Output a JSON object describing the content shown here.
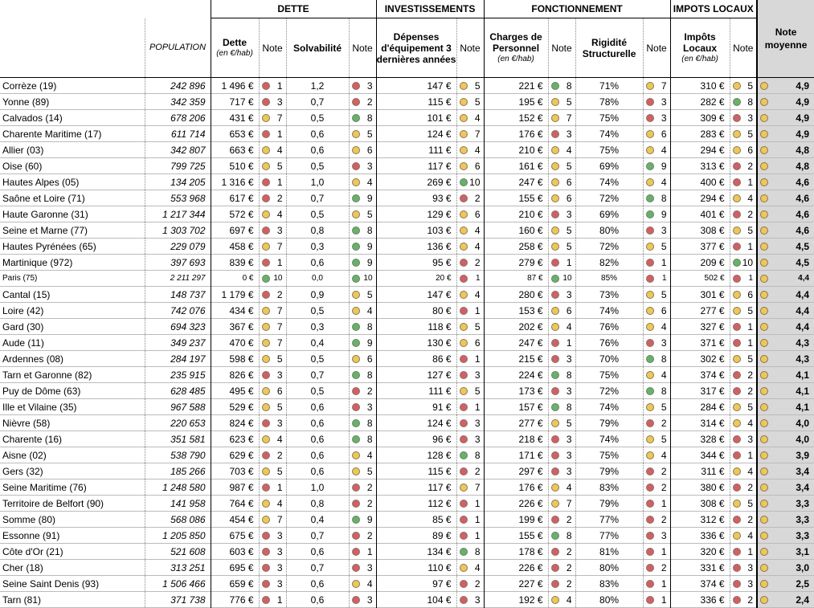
{
  "headers": {
    "groups": [
      "DETTE",
      "INVESTISSEMENTS",
      "FONCTIONNEMENT",
      "IMPOTS LOCAUX"
    ],
    "population": "POPULATION",
    "dette": "Dette",
    "unit": "(en €/hab)",
    "note": "Note",
    "solvabilite": "Solvabilité",
    "depenses": "Dépenses d'équipement 3 dernières années",
    "charges": "Charges de Personnel",
    "rigidite": "Rigidité Structurelle",
    "impots": "Impôts Locaux",
    "moyenne": "Note moyenne"
  },
  "colors": {
    "green": "#5fb85f",
    "yellow": "#f5c842",
    "red": "#e05a5a",
    "avg_bg": "#d8d8d8"
  },
  "rows": [
    {
      "d": "Corrèze (19)",
      "pop": "242 896",
      "dette": "1 496 €",
      "dn": [
        "r",
        "1"
      ],
      "solv": "1,2",
      "sn": [
        "r",
        "3"
      ],
      "dep": "147 €",
      "epn": [
        "y",
        "5"
      ],
      "ch": "221 €",
      "cn": [
        "g",
        "8"
      ],
      "rig": "71%",
      "rn": [
        "y",
        "7"
      ],
      "imp": "310 €",
      "in": [
        "y",
        "5"
      ],
      "avg": [
        "y",
        "4,9"
      ]
    },
    {
      "d": "Yonne (89)",
      "pop": "342 359",
      "dette": "717 €",
      "dn": [
        "r",
        "3"
      ],
      "solv": "0,7",
      "sn": [
        "r",
        "2"
      ],
      "dep": "115 €",
      "epn": [
        "y",
        "5"
      ],
      "ch": "195 €",
      "cn": [
        "y",
        "5"
      ],
      "rig": "78%",
      "rn": [
        "r",
        "3"
      ],
      "imp": "282 €",
      "in": [
        "g",
        "8"
      ],
      "avg": [
        "y",
        "4,9"
      ]
    },
    {
      "d": "Calvados (14)",
      "pop": "678 206",
      "dette": "431 €",
      "dn": [
        "y",
        "7"
      ],
      "solv": "0,5",
      "sn": [
        "g",
        "8"
      ],
      "dep": "101 €",
      "epn": [
        "y",
        "4"
      ],
      "ch": "152 €",
      "cn": [
        "y",
        "7"
      ],
      "rig": "75%",
      "rn": [
        "r",
        "3"
      ],
      "imp": "309 €",
      "in": [
        "r",
        "3"
      ],
      "avg": [
        "y",
        "4,9"
      ]
    },
    {
      "d": "Charente Maritime (17)",
      "pop": "611 714",
      "dette": "653 €",
      "dn": [
        "r",
        "1"
      ],
      "solv": "0,6",
      "sn": [
        "y",
        "5"
      ],
      "dep": "124 €",
      "epn": [
        "y",
        "7"
      ],
      "ch": "176 €",
      "cn": [
        "r",
        "3"
      ],
      "rig": "74%",
      "rn": [
        "y",
        "6"
      ],
      "imp": "283 €",
      "in": [
        "y",
        "5"
      ],
      "avg": [
        "y",
        "4,9"
      ]
    },
    {
      "d": "Allier (03)",
      "pop": "342 807",
      "dette": "663 €",
      "dn": [
        "y",
        "4"
      ],
      "solv": "0,6",
      "sn": [
        "y",
        "6"
      ],
      "dep": "111 €",
      "epn": [
        "y",
        "4"
      ],
      "ch": "210 €",
      "cn": [
        "y",
        "4"
      ],
      "rig": "75%",
      "rn": [
        "y",
        "4"
      ],
      "imp": "294 €",
      "in": [
        "y",
        "6"
      ],
      "avg": [
        "y",
        "4,8"
      ]
    },
    {
      "d": "Oise (60)",
      "pop": "799 725",
      "dette": "510 €",
      "dn": [
        "y",
        "5"
      ],
      "solv": "0,5",
      "sn": [
        "r",
        "3"
      ],
      "dep": "117 €",
      "epn": [
        "y",
        "6"
      ],
      "ch": "161 €",
      "cn": [
        "y",
        "5"
      ],
      "rig": "69%",
      "rn": [
        "g",
        "9"
      ],
      "imp": "313 €",
      "in": [
        "r",
        "2"
      ],
      "avg": [
        "y",
        "4,8"
      ]
    },
    {
      "d": "Hautes Alpes (05)",
      "pop": "134 205",
      "dette": "1 316 €",
      "dn": [
        "r",
        "1"
      ],
      "solv": "1,0",
      "sn": [
        "y",
        "4"
      ],
      "dep": "269 €",
      "epn": [
        "g",
        "10"
      ],
      "ch": "247 €",
      "cn": [
        "y",
        "6"
      ],
      "rig": "74%",
      "rn": [
        "y",
        "4"
      ],
      "imp": "400 €",
      "in": [
        "r",
        "1"
      ],
      "avg": [
        "y",
        "4,6"
      ]
    },
    {
      "d": "Saône et Loire (71)",
      "pop": "553 968",
      "dette": "617 €",
      "dn": [
        "r",
        "2"
      ],
      "solv": "0,7",
      "sn": [
        "g",
        "9"
      ],
      "dep": "93 €",
      "epn": [
        "r",
        "2"
      ],
      "ch": "155 €",
      "cn": [
        "y",
        "6"
      ],
      "rig": "72%",
      "rn": [
        "g",
        "8"
      ],
      "imp": "294 €",
      "in": [
        "y",
        "4"
      ],
      "avg": [
        "y",
        "4,6"
      ]
    },
    {
      "d": "Haute Garonne (31)",
      "pop": "1 217 344",
      "dette": "572 €",
      "dn": [
        "y",
        "4"
      ],
      "solv": "0,5",
      "sn": [
        "y",
        "5"
      ],
      "dep": "129 €",
      "epn": [
        "y",
        "6"
      ],
      "ch": "210 €",
      "cn": [
        "r",
        "3"
      ],
      "rig": "69%",
      "rn": [
        "g",
        "9"
      ],
      "imp": "401 €",
      "in": [
        "r",
        "2"
      ],
      "avg": [
        "y",
        "4,6"
      ]
    },
    {
      "d": "Seine et Marne (77)",
      "pop": "1 303 702",
      "dette": "697 €",
      "dn": [
        "r",
        "3"
      ],
      "solv": "0,8",
      "sn": [
        "g",
        "8"
      ],
      "dep": "103 €",
      "epn": [
        "y",
        "4"
      ],
      "ch": "160 €",
      "cn": [
        "y",
        "5"
      ],
      "rig": "80%",
      "rn": [
        "r",
        "3"
      ],
      "imp": "308 €",
      "in": [
        "y",
        "5"
      ],
      "avg": [
        "y",
        "4,6"
      ]
    },
    {
      "d": "Hautes Pyrénées (65)",
      "pop": "229 079",
      "dette": "458 €",
      "dn": [
        "y",
        "7"
      ],
      "solv": "0,3",
      "sn": [
        "g",
        "9"
      ],
      "dep": "136 €",
      "epn": [
        "y",
        "4"
      ],
      "ch": "258 €",
      "cn": [
        "y",
        "5"
      ],
      "rig": "72%",
      "rn": [
        "y",
        "5"
      ],
      "imp": "377 €",
      "in": [
        "r",
        "1"
      ],
      "avg": [
        "y",
        "4,5"
      ]
    },
    {
      "d": "Martinique (972)",
      "pop": "397 693",
      "dette": "839 €",
      "dn": [
        "r",
        "1"
      ],
      "solv": "0,6",
      "sn": [
        "g",
        "9"
      ],
      "dep": "95 €",
      "epn": [
        "r",
        "2"
      ],
      "ch": "279 €",
      "cn": [
        "r",
        "1"
      ],
      "rig": "82%",
      "rn": [
        "r",
        "1"
      ],
      "imp": "209 €",
      "in": [
        "g",
        "10"
      ],
      "avg": [
        "y",
        "4,5"
      ]
    },
    {
      "d": "Paris (75)",
      "pop": "2 211 297",
      "dette": "0 €",
      "dn": [
        "g",
        "10"
      ],
      "solv": "0,0",
      "sn": [
        "g",
        "10"
      ],
      "dep": "20 €",
      "epn": [
        "r",
        "1"
      ],
      "ch": "87 €",
      "cn": [
        "g",
        "10"
      ],
      "rig": "85%",
      "rn": [
        "r",
        "1"
      ],
      "imp": "502 €",
      "in": [
        "r",
        "1"
      ],
      "avg": [
        "y",
        "4,4"
      ],
      "small": true
    },
    {
      "d": "Cantal (15)",
      "pop": "148 737",
      "dette": "1 179 €",
      "dn": [
        "r",
        "2"
      ],
      "solv": "0,9",
      "sn": [
        "y",
        "5"
      ],
      "dep": "147 €",
      "epn": [
        "y",
        "4"
      ],
      "ch": "280 €",
      "cn": [
        "r",
        "3"
      ],
      "rig": "73%",
      "rn": [
        "y",
        "5"
      ],
      "imp": "301 €",
      "in": [
        "y",
        "6"
      ],
      "avg": [
        "y",
        "4,4"
      ]
    },
    {
      "d": "Loire (42)",
      "pop": "742 076",
      "dette": "434 €",
      "dn": [
        "y",
        "7"
      ],
      "solv": "0,5",
      "sn": [
        "y",
        "4"
      ],
      "dep": "80 €",
      "epn": [
        "r",
        "1"
      ],
      "ch": "153 €",
      "cn": [
        "y",
        "6"
      ],
      "rig": "74%",
      "rn": [
        "y",
        "6"
      ],
      "imp": "277 €",
      "in": [
        "y",
        "5"
      ],
      "avg": [
        "y",
        "4,4"
      ]
    },
    {
      "d": "Gard (30)",
      "pop": "694 323",
      "dette": "367 €",
      "dn": [
        "y",
        "7"
      ],
      "solv": "0,3",
      "sn": [
        "g",
        "8"
      ],
      "dep": "118 €",
      "epn": [
        "y",
        "5"
      ],
      "ch": "202 €",
      "cn": [
        "y",
        "4"
      ],
      "rig": "76%",
      "rn": [
        "y",
        "4"
      ],
      "imp": "327 €",
      "in": [
        "r",
        "1"
      ],
      "avg": [
        "y",
        "4,4"
      ]
    },
    {
      "d": "Aude (11)",
      "pop": "349 237",
      "dette": "470 €",
      "dn": [
        "y",
        "7"
      ],
      "solv": "0,4",
      "sn": [
        "g",
        "9"
      ],
      "dep": "130 €",
      "epn": [
        "y",
        "6"
      ],
      "ch": "247 €",
      "cn": [
        "r",
        "1"
      ],
      "rig": "76%",
      "rn": [
        "r",
        "3"
      ],
      "imp": "371 €",
      "in": [
        "r",
        "1"
      ],
      "avg": [
        "y",
        "4,3"
      ]
    },
    {
      "d": "Ardennes (08)",
      "pop": "284 197",
      "dette": "598 €",
      "dn": [
        "y",
        "5"
      ],
      "solv": "0,5",
      "sn": [
        "y",
        "6"
      ],
      "dep": "86 €",
      "epn": [
        "r",
        "1"
      ],
      "ch": "215 €",
      "cn": [
        "r",
        "3"
      ],
      "rig": "70%",
      "rn": [
        "g",
        "8"
      ],
      "imp": "302 €",
      "in": [
        "y",
        "5"
      ],
      "avg": [
        "y",
        "4,3"
      ]
    },
    {
      "d": "Tarn et Garonne (82)",
      "pop": "235 915",
      "dette": "826 €",
      "dn": [
        "r",
        "3"
      ],
      "solv": "0,7",
      "sn": [
        "g",
        "8"
      ],
      "dep": "127 €",
      "epn": [
        "r",
        "3"
      ],
      "ch": "224 €",
      "cn": [
        "g",
        "8"
      ],
      "rig": "75%",
      "rn": [
        "y",
        "4"
      ],
      "imp": "374 €",
      "in": [
        "r",
        "2"
      ],
      "avg": [
        "y",
        "4,1"
      ]
    },
    {
      "d": "Puy de Dôme (63)",
      "pop": "628 485",
      "dette": "495 €",
      "dn": [
        "y",
        "6"
      ],
      "solv": "0,5",
      "sn": [
        "r",
        "2"
      ],
      "dep": "111 €",
      "epn": [
        "y",
        "5"
      ],
      "ch": "173 €",
      "cn": [
        "r",
        "3"
      ],
      "rig": "72%",
      "rn": [
        "g",
        "8"
      ],
      "imp": "317 €",
      "in": [
        "r",
        "2"
      ],
      "avg": [
        "y",
        "4,1"
      ]
    },
    {
      "d": "Ille et Vilaine (35)",
      "pop": "967 588",
      "dette": "529 €",
      "dn": [
        "y",
        "5"
      ],
      "solv": "0,6",
      "sn": [
        "r",
        "3"
      ],
      "dep": "91 €",
      "epn": [
        "r",
        "1"
      ],
      "ch": "157 €",
      "cn": [
        "g",
        "8"
      ],
      "rig": "74%",
      "rn": [
        "y",
        "5"
      ],
      "imp": "284 €",
      "in": [
        "y",
        "5"
      ],
      "avg": [
        "y",
        "4,1"
      ]
    },
    {
      "d": "Nièvre (58)",
      "pop": "220 653",
      "dette": "824 €",
      "dn": [
        "r",
        "3"
      ],
      "solv": "0,6",
      "sn": [
        "g",
        "8"
      ],
      "dep": "124 €",
      "epn": [
        "r",
        "3"
      ],
      "ch": "277 €",
      "cn": [
        "y",
        "5"
      ],
      "rig": "79%",
      "rn": [
        "r",
        "2"
      ],
      "imp": "314 €",
      "in": [
        "y",
        "4"
      ],
      "avg": [
        "y",
        "4,0"
      ]
    },
    {
      "d": "Charente (16)",
      "pop": "351 581",
      "dette": "623 €",
      "dn": [
        "y",
        "4"
      ],
      "solv": "0,6",
      "sn": [
        "g",
        "8"
      ],
      "dep": "96 €",
      "epn": [
        "r",
        "3"
      ],
      "ch": "218 €",
      "cn": [
        "r",
        "3"
      ],
      "rig": "74%",
      "rn": [
        "y",
        "5"
      ],
      "imp": "328 €",
      "in": [
        "r",
        "3"
      ],
      "avg": [
        "y",
        "4,0"
      ]
    },
    {
      "d": "Aisne (02)",
      "pop": "538 790",
      "dette": "629 €",
      "dn": [
        "r",
        "2"
      ],
      "solv": "0,6",
      "sn": [
        "y",
        "4"
      ],
      "dep": "128 €",
      "epn": [
        "g",
        "8"
      ],
      "ch": "171 €",
      "cn": [
        "r",
        "3"
      ],
      "rig": "75%",
      "rn": [
        "y",
        "4"
      ],
      "imp": "344 €",
      "in": [
        "r",
        "1"
      ],
      "avg": [
        "y",
        "3,9"
      ]
    },
    {
      "d": "Gers (32)",
      "pop": "185 266",
      "dette": "703 €",
      "dn": [
        "y",
        "5"
      ],
      "solv": "0,6",
      "sn": [
        "y",
        "5"
      ],
      "dep": "115 €",
      "epn": [
        "r",
        "2"
      ],
      "ch": "297 €",
      "cn": [
        "r",
        "3"
      ],
      "rig": "79%",
      "rn": [
        "r",
        "2"
      ],
      "imp": "311 €",
      "in": [
        "y",
        "4"
      ],
      "avg": [
        "y",
        "3,4"
      ]
    },
    {
      "d": "Seine Maritime (76)",
      "pop": "1 248 580",
      "dette": "987 €",
      "dn": [
        "r",
        "1"
      ],
      "solv": "1,0",
      "sn": [
        "r",
        "2"
      ],
      "dep": "117 €",
      "epn": [
        "y",
        "7"
      ],
      "ch": "176 €",
      "cn": [
        "y",
        "4"
      ],
      "rig": "83%",
      "rn": [
        "r",
        "2"
      ],
      "imp": "380 €",
      "in": [
        "r",
        "2"
      ],
      "avg": [
        "y",
        "3,4"
      ]
    },
    {
      "d": "Territoire de Belfort (90)",
      "pop": "141 958",
      "dette": "764 €",
      "dn": [
        "y",
        "4"
      ],
      "solv": "0,8",
      "sn": [
        "r",
        "2"
      ],
      "dep": "112 €",
      "epn": [
        "r",
        "1"
      ],
      "ch": "226 €",
      "cn": [
        "y",
        "7"
      ],
      "rig": "79%",
      "rn": [
        "r",
        "1"
      ],
      "imp": "308 €",
      "in": [
        "y",
        "5"
      ],
      "avg": [
        "y",
        "3,3"
      ]
    },
    {
      "d": "Somme (80)",
      "pop": "568 086",
      "dette": "454 €",
      "dn": [
        "y",
        "7"
      ],
      "solv": "0,4",
      "sn": [
        "g",
        "9"
      ],
      "dep": "85 €",
      "epn": [
        "r",
        "1"
      ],
      "ch": "199 €",
      "cn": [
        "r",
        "2"
      ],
      "rig": "77%",
      "rn": [
        "r",
        "2"
      ],
      "imp": "312 €",
      "in": [
        "r",
        "2"
      ],
      "avg": [
        "y",
        "3,3"
      ]
    },
    {
      "d": "Essonne (91)",
      "pop": "1 205 850",
      "dette": "675 €",
      "dn": [
        "r",
        "3"
      ],
      "solv": "0,7",
      "sn": [
        "r",
        "2"
      ],
      "dep": "89 €",
      "epn": [
        "r",
        "1"
      ],
      "ch": "155 €",
      "cn": [
        "g",
        "8"
      ],
      "rig": "77%",
      "rn": [
        "r",
        "3"
      ],
      "imp": "336 €",
      "in": [
        "y",
        "4"
      ],
      "avg": [
        "y",
        "3,3"
      ]
    },
    {
      "d": "Côte d'Or (21)",
      "pop": "521 608",
      "dette": "603 €",
      "dn": [
        "r",
        "3"
      ],
      "solv": "0,6",
      "sn": [
        "r",
        "1"
      ],
      "dep": "134 €",
      "epn": [
        "g",
        "8"
      ],
      "ch": "178 €",
      "cn": [
        "r",
        "2"
      ],
      "rig": "81%",
      "rn": [
        "r",
        "1"
      ],
      "imp": "320 €",
      "in": [
        "r",
        "1"
      ],
      "avg": [
        "y",
        "3,1"
      ]
    },
    {
      "d": "Cher (18)",
      "pop": "313 251",
      "dette": "695 €",
      "dn": [
        "r",
        "3"
      ],
      "solv": "0,7",
      "sn": [
        "r",
        "3"
      ],
      "dep": "110 €",
      "epn": [
        "y",
        "4"
      ],
      "ch": "226 €",
      "cn": [
        "r",
        "2"
      ],
      "rig": "80%",
      "rn": [
        "r",
        "2"
      ],
      "imp": "331 €",
      "in": [
        "r",
        "3"
      ],
      "avg": [
        "y",
        "3,0"
      ]
    },
    {
      "d": "Seine Saint Denis (93)",
      "pop": "1 506 466",
      "dette": "659 €",
      "dn": [
        "r",
        "3"
      ],
      "solv": "0,6",
      "sn": [
        "y",
        "4"
      ],
      "dep": "97 €",
      "epn": [
        "r",
        "2"
      ],
      "ch": "227 €",
      "cn": [
        "r",
        "2"
      ],
      "rig": "83%",
      "rn": [
        "r",
        "1"
      ],
      "imp": "374 €",
      "in": [
        "r",
        "3"
      ],
      "avg": [
        "y",
        "2,5"
      ]
    },
    {
      "d": "Tarn (81)",
      "pop": "371 738",
      "dette": "776 €",
      "dn": [
        "r",
        "1"
      ],
      "solv": "0,6",
      "sn": [
        "r",
        "3"
      ],
      "dep": "104 €",
      "epn": [
        "r",
        "3"
      ],
      "ch": "192 €",
      "cn": [
        "y",
        "4"
      ],
      "rig": "80%",
      "rn": [
        "r",
        "1"
      ],
      "imp": "336 €",
      "in": [
        "r",
        "2"
      ],
      "avg": [
        "y",
        "2,4"
      ]
    }
  ]
}
